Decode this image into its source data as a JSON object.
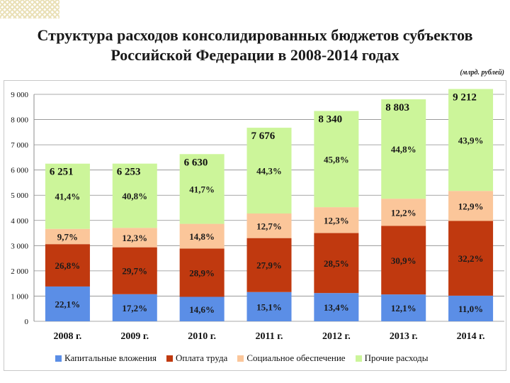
{
  "title_line1": "Структура расходов консолидированных бюджетов субъектов",
  "title_line2": "Российской Федерации в 2008-2014 годах",
  "unit": "(млрд. рублей)",
  "colors": {
    "capital": "#5b8ee6",
    "salary": "#c0390f",
    "social": "#fbc69a",
    "other": "#ccf59a"
  },
  "chart_data": {
    "type": "bar",
    "stacked": true,
    "title": "Структура расходов консолидированных бюджетов субъектов Российской Федерации в 2008-2014 годах",
    "ylabel": "(млрд. рублей)",
    "ylim": [
      0,
      9000
    ],
    "yticks": [
      0,
      1000,
      2000,
      3000,
      4000,
      5000,
      6000,
      7000,
      8000,
      9000
    ],
    "ytick_labels": [
      "0",
      "1 000",
      "2 000",
      "3 000",
      "4 000",
      "5 000",
      "6 000",
      "7 000",
      "8 000",
      "9 000"
    ],
    "grid": true,
    "legend_position": "bottom",
    "categories": [
      "2008 г.",
      "2009 г.",
      "2010 г.",
      "2011 г.",
      "2012 г.",
      "2013 г.",
      "2014 г."
    ],
    "totals": [
      6251,
      6253,
      6630,
      7676,
      8340,
      8803,
      9212
    ],
    "total_labels": [
      "6 251",
      "6 253",
      "6 630",
      "7 676",
      "8 340",
      "8 803",
      "9 212"
    ],
    "series": [
      {
        "name": "Капитальные вложения",
        "key": "capital",
        "values": [
          1380,
          1075,
          970,
          1160,
          1120,
          1065,
          1015
        ],
        "labels": [
          "22,1%",
          "17,2%",
          "14,6%",
          "15,1%",
          "13,4%",
          "12,1%",
          "11,0%"
        ]
      },
      {
        "name": "Оплата труда",
        "key": "salary",
        "values": [
          1680,
          1860,
          1915,
          2140,
          2380,
          2720,
          2965
        ],
        "labels": [
          "26,8%",
          "29,7%",
          "28,9%",
          "27,9%",
          "28,5%",
          "30,9%",
          "32,2%"
        ]
      },
      {
        "name": "Социальное обеспечение",
        "key": "social",
        "values": [
          605,
          770,
          980,
          975,
          1025,
          1075,
          1190
        ],
        "labels": [
          "9,7%",
          "12,3%",
          "14,8%",
          "12,7%",
          "12,3%",
          "12,2%",
          "12,9%"
        ]
      },
      {
        "name": "Прочие расходы",
        "key": "other",
        "values": [
          2586,
          2548,
          2765,
          3401,
          3815,
          3943,
          4042
        ],
        "labels": [
          "41,4%",
          "40,8%",
          "41,7%",
          "44,3%",
          "45,8%",
          "44,8%",
          "43,9%"
        ]
      }
    ]
  }
}
